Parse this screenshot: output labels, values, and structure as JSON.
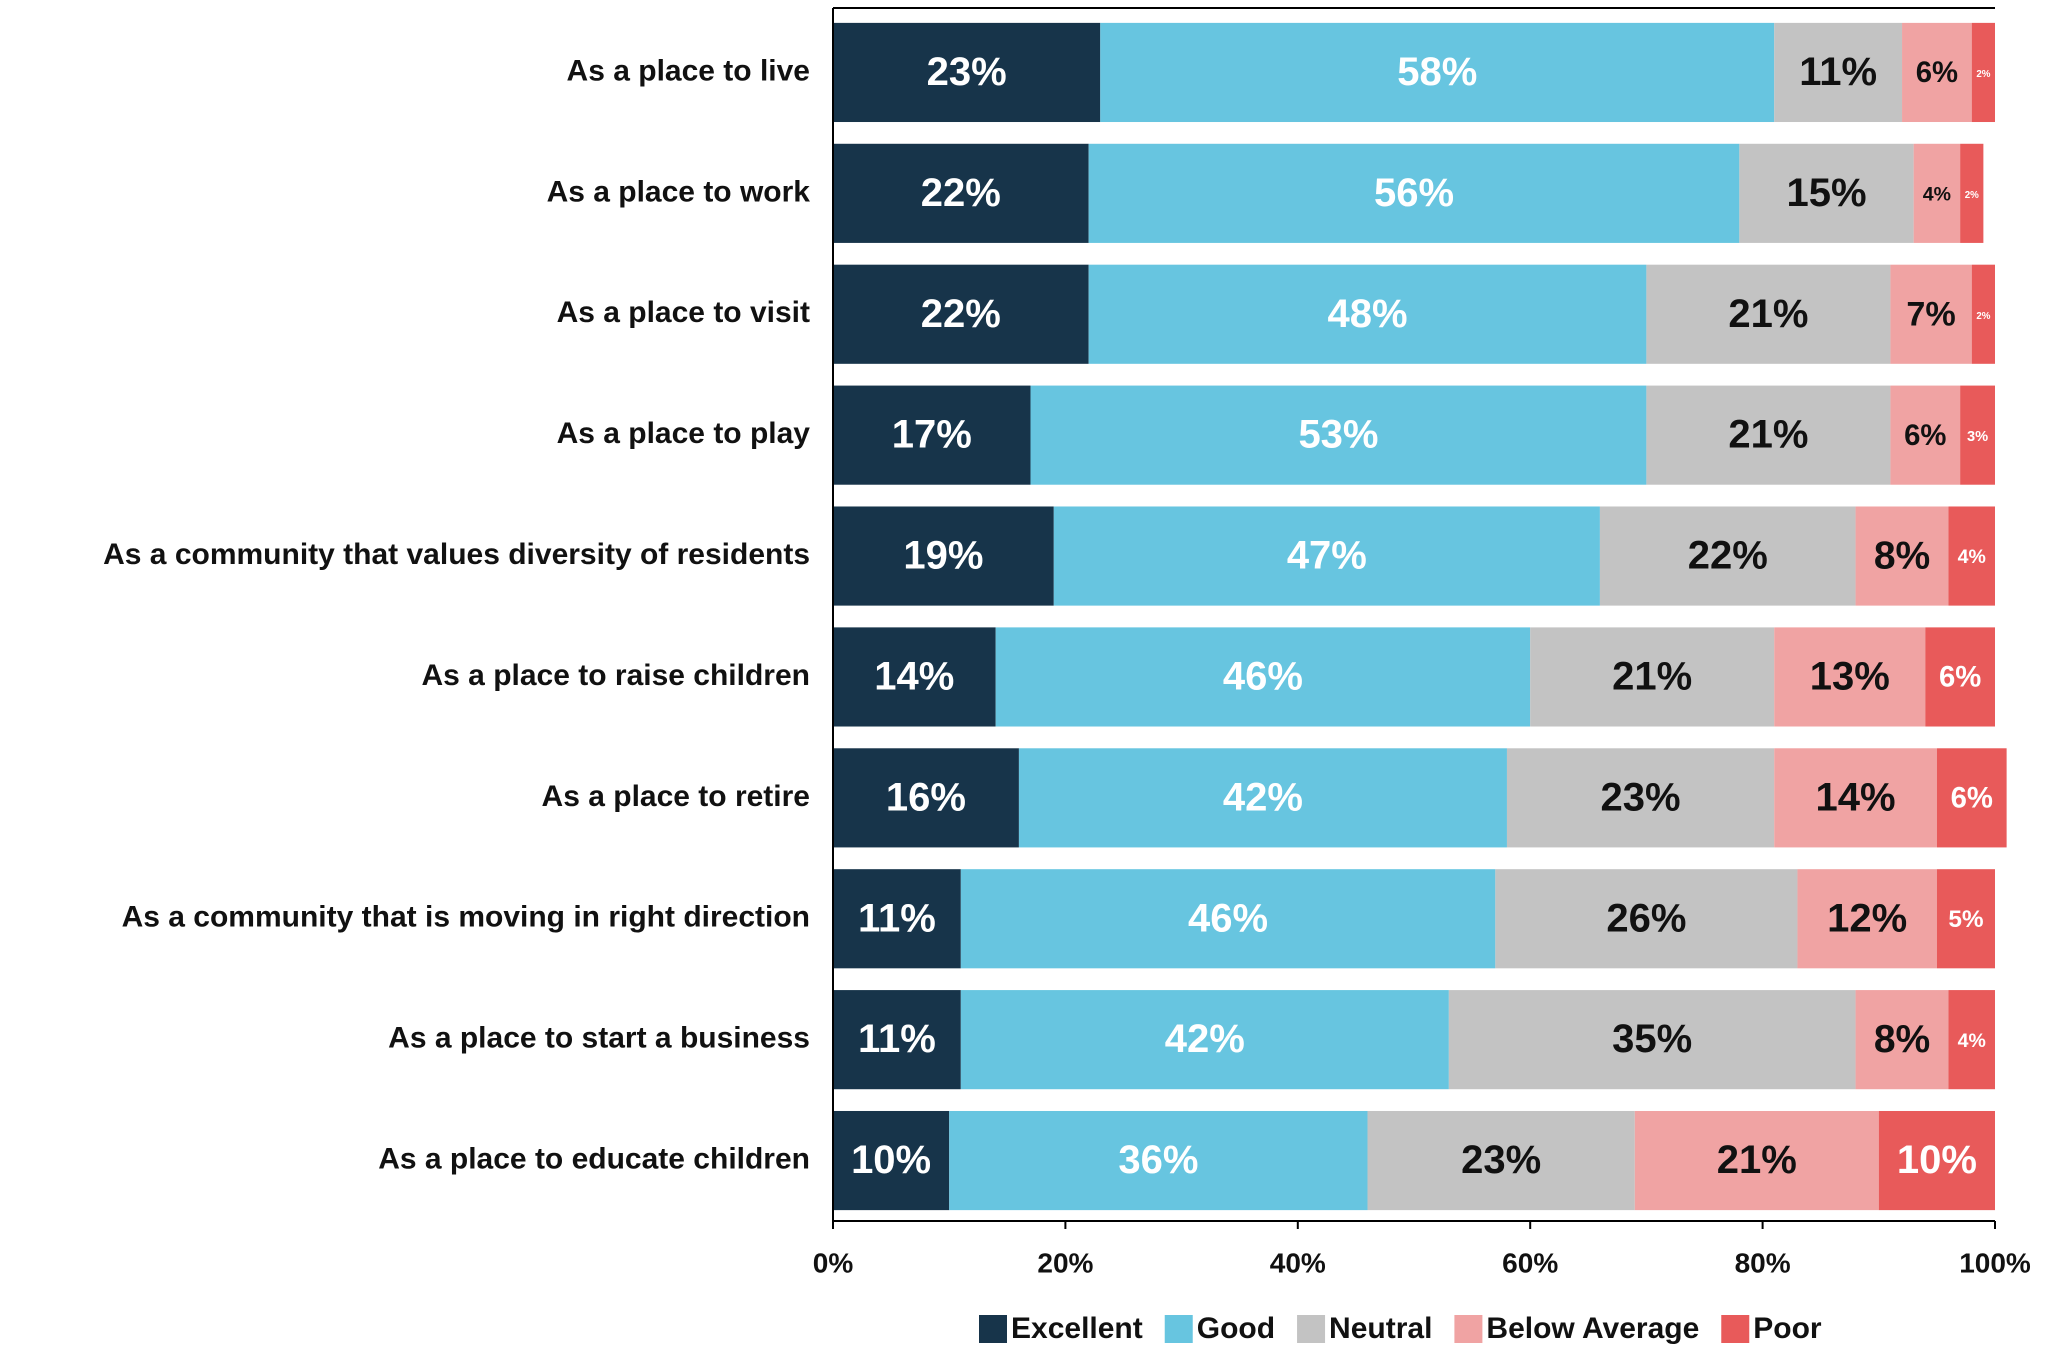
{
  "chart_data": {
    "type": "stacked_bar_horizontal",
    "categories": [
      "As a place to live",
      "As a place to work",
      "As a place to visit",
      "As a place to play",
      "As a community that values diversity of residents",
      "As a place to raise children",
      "As a place to retire",
      "As a community that is moving in right direction",
      "As a place to start a business",
      "As a place to educate children"
    ],
    "series": [
      {
        "name": "Excellent",
        "color": "#17344a",
        "values": [
          23,
          22,
          22,
          17,
          19,
          14,
          16,
          11,
          11,
          10
        ],
        "value_labels": [
          "23%",
          "22%",
          "22%",
          "17%",
          "19%",
          "14%",
          "16%",
          "11%",
          "11%",
          "10%"
        ]
      },
      {
        "name": "Good",
        "color": "#67c5e0",
        "values": [
          58,
          56,
          48,
          53,
          47,
          46,
          42,
          46,
          42,
          36
        ],
        "value_labels": [
          "58%",
          "56%",
          "48%",
          "53%",
          "47%",
          "46%",
          "42%",
          "46%",
          "42%",
          "36%"
        ]
      },
      {
        "name": "Neutral",
        "color": "#c3c3c3",
        "values": [
          11,
          15,
          21,
          21,
          22,
          21,
          23,
          26,
          35,
          23
        ],
        "value_labels": [
          "11%",
          "15%",
          "21%",
          "21%",
          "22%",
          "21%",
          "23%",
          "26%",
          "35%",
          "23%"
        ]
      },
      {
        "name": "Below Average",
        "color": "#f0a3a3",
        "values": [
          6,
          4,
          7,
          6,
          8,
          13,
          14,
          12,
          8,
          21
        ],
        "value_labels": [
          "6%",
          "4%",
          "7%",
          "6%",
          "8%",
          "13%",
          "14%",
          "12%",
          "8%",
          "21%"
        ]
      },
      {
        "name": "Poor",
        "color": "#e85a5a",
        "values": [
          2,
          2,
          2,
          3,
          4,
          6,
          6,
          5,
          4,
          10
        ],
        "value_labels": [
          "2%",
          "2%",
          "2%",
          "3%",
          "4%",
          "6%",
          "6%",
          "5%",
          "4%",
          "10%"
        ]
      }
    ],
    "xlim": [
      0,
      100
    ],
    "xticks": [
      {
        "value": 0,
        "label": "0%"
      },
      {
        "value": 20,
        "label": "20%"
      },
      {
        "value": 40,
        "label": "40%"
      },
      {
        "value": 60,
        "label": "60%"
      },
      {
        "value": 80,
        "label": "80%"
      },
      {
        "value": 100,
        "label": "100%"
      }
    ],
    "grid": false,
    "legend": "bottom"
  }
}
